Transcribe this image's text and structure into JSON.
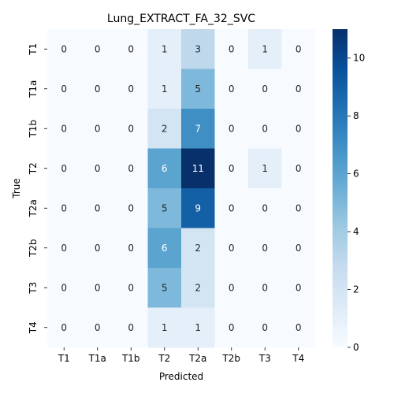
{
  "chart_data": {
    "type": "heatmap",
    "title": "Lung_EXTRACT_FA_32_SVC",
    "xlabel": "Predicted",
    "ylabel": "True",
    "x_categories": [
      "T1",
      "T1a",
      "T1b",
      "T2",
      "T2a",
      "T2b",
      "T3",
      "T4"
    ],
    "y_categories": [
      "T1",
      "T1a",
      "T1b",
      "T2",
      "T2a",
      "T2b",
      "T3",
      "T4"
    ],
    "values": [
      [
        0,
        0,
        0,
        1,
        3,
        0,
        1,
        0
      ],
      [
        0,
        0,
        0,
        1,
        5,
        0,
        0,
        0
      ],
      [
        0,
        0,
        0,
        2,
        7,
        0,
        0,
        0
      ],
      [
        0,
        0,
        0,
        6,
        11,
        0,
        1,
        0
      ],
      [
        0,
        0,
        0,
        5,
        9,
        0,
        0,
        0
      ],
      [
        0,
        0,
        0,
        6,
        2,
        0,
        0,
        0
      ],
      [
        0,
        0,
        0,
        5,
        2,
        0,
        0,
        0
      ],
      [
        0,
        0,
        0,
        1,
        1,
        0,
        0,
        0
      ]
    ],
    "colormap": "Blues",
    "colorbar": {
      "vmin": 0,
      "vmax": 11,
      "ticks": [
        0,
        2,
        4,
        6,
        8,
        10
      ]
    },
    "annotate_cells": true
  }
}
